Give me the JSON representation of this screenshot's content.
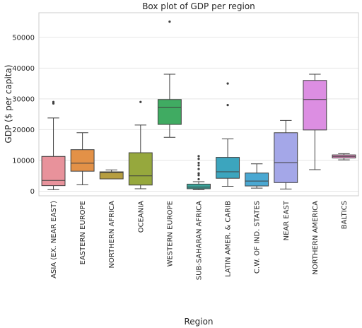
{
  "chart_data": {
    "type": "box",
    "title": "Box plot of GDP per region",
    "xlabel": "Region",
    "ylabel": "GDP ($ per capita)",
    "ylim": [
      -1500,
      58000
    ],
    "yticks": [
      0,
      10000,
      20000,
      30000,
      40000,
      50000
    ],
    "grid": true,
    "categories": [
      "ASIA (EX. NEAR EAST)",
      "EASTERN EUROPE",
      "NORTHERN AFRICA",
      "OCEANIA",
      "WESTERN EUROPE",
      "SUB-SAHARAN AFRICA",
      "LATIN AMER. & CARIB",
      "C.W. OF IND. STATES",
      "NEAR EAST",
      "NORTHERN AMERICA",
      "BALTICS"
    ],
    "colors": [
      "#e8929b",
      "#e39147",
      "#b69e41",
      "#96a83d",
      "#40ab62",
      "#3aa49a",
      "#3ca5be",
      "#4aa8d2",
      "#a4a7e8",
      "#dc8ee2",
      "#e58ec3"
    ],
    "boxes": [
      {
        "whislo": 500,
        "q1": 1800,
        "med": 3500,
        "q3": 11300,
        "whishi": 23800,
        "fliers": [
          28500,
          29000
        ]
      },
      {
        "whislo": 2100,
        "q1": 6500,
        "med": 9100,
        "q3": 13500,
        "whishi": 19000,
        "fliers": []
      },
      {
        "whislo": 4000,
        "q1": 4000,
        "med": 6000,
        "q3": 6300,
        "whishi": 6900,
        "fliers": []
      },
      {
        "whislo": 800,
        "q1": 2000,
        "med": 5000,
        "q3": 12500,
        "whishi": 21500,
        "fliers": [
          29000
        ]
      },
      {
        "whislo": 17500,
        "q1": 21700,
        "med": 27200,
        "q3": 29800,
        "whishi": 38000,
        "fliers": [
          55100
        ]
      },
      {
        "whislo": 500,
        "q1": 800,
        "med": 1300,
        "q3": 2300,
        "whishi": 3100,
        "fliers": [
          3900,
          5200,
          5800,
          7200,
          8400,
          9200,
          10500,
          11400
        ]
      },
      {
        "whislo": 1600,
        "q1": 4200,
        "med": 6300,
        "q3": 11000,
        "whishi": 17000,
        "fliers": [
          28000,
          35000
        ]
      },
      {
        "whislo": 1000,
        "q1": 1700,
        "med": 3300,
        "q3": 5900,
        "whishi": 8900,
        "fliers": []
      },
      {
        "whislo": 700,
        "q1": 2800,
        "med": 9300,
        "q3": 19000,
        "whishi": 23000,
        "fliers": []
      },
      {
        "whislo": 7000,
        "q1": 19900,
        "med": 29800,
        "q3": 36000,
        "whishi": 38000,
        "fliers": []
      },
      {
        "whislo": 10200,
        "q1": 10800,
        "med": 11300,
        "q3": 11800,
        "whishi": 12200,
        "fliers": []
      }
    ]
  }
}
